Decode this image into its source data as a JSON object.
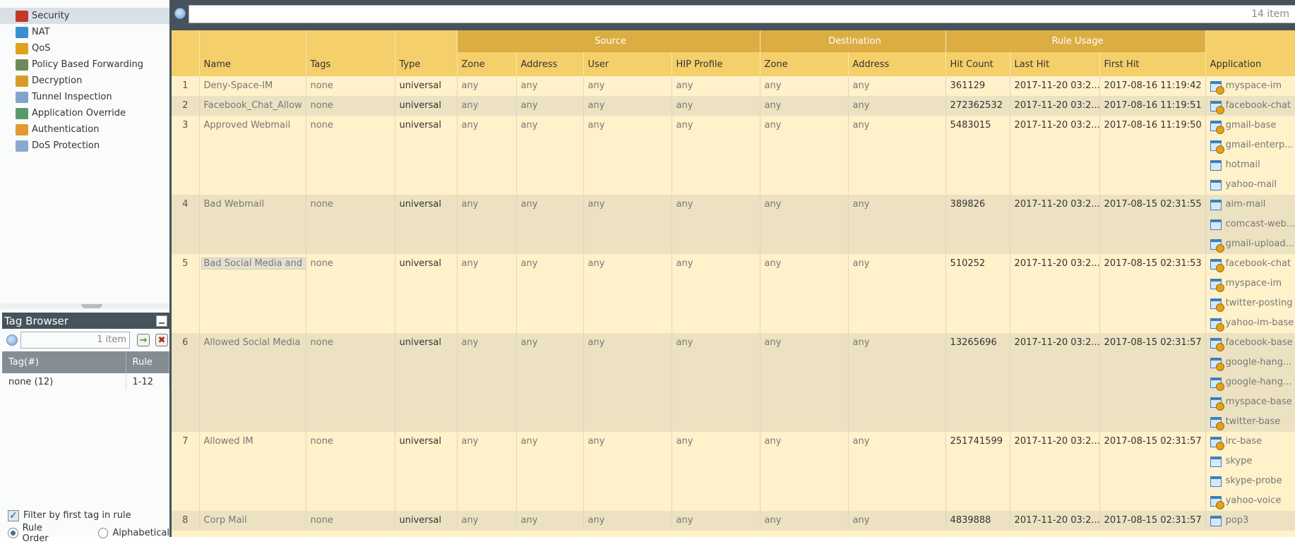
{
  "sidebar": {
    "items": [
      {
        "label": "Security",
        "icon": "firewall-icon",
        "color": "#c0392b",
        "selected": true
      },
      {
        "label": "NAT",
        "icon": "nat-icon",
        "color": "#3b8fd1"
      },
      {
        "label": "QoS",
        "icon": "qos-icon",
        "color": "#e0a020"
      },
      {
        "label": "Policy Based Forwarding",
        "icon": "forwarding-icon",
        "color": "#6d8a5a"
      },
      {
        "label": "Decryption",
        "icon": "padlock-icon",
        "color": "#d89a2a"
      },
      {
        "label": "Tunnel Inspection",
        "icon": "tunnel-inspection-icon",
        "color": "#7fa6c9"
      },
      {
        "label": "Application Override",
        "icon": "app-override-icon",
        "color": "#5a9a6a"
      },
      {
        "label": "Authentication",
        "icon": "authentication-icon",
        "color": "#e09a30"
      },
      {
        "label": "DoS Protection",
        "icon": "dos-shield-icon",
        "color": "#8aa8d0"
      }
    ]
  },
  "tag_browser": {
    "title": "Tag Browser",
    "search_count": "1 item",
    "columns": [
      "Tag(#)",
      "Rule"
    ],
    "rows": [
      {
        "tag": "none (12)",
        "rule": "1-12"
      }
    ],
    "filter_label": "Filter by first tag in rule",
    "filter_checked": true,
    "sort_options": [
      "Rule Order",
      "Alphabetical"
    ],
    "sort_selected": "Rule Order"
  },
  "main": {
    "search_count": "14 item",
    "group_headers": {
      "source": "Source",
      "destination": "Destination",
      "rule_usage": "Rule Usage"
    },
    "columns": [
      "",
      "Name",
      "Tags",
      "Type",
      "Zone",
      "Address",
      "User",
      "HIP Profile",
      "Zone",
      "Address",
      "Hit Count",
      "Last Hit",
      "First Hit",
      "Application"
    ],
    "rules": [
      {
        "num": "1",
        "name": "Deny-Space-IM",
        "tags": "none",
        "type": "universal",
        "src_zone": "any",
        "src_addr": "any",
        "user": "any",
        "hip": "any",
        "dst_zone": "any",
        "dst_addr": "any",
        "hits": "361129",
        "last": "2017-11-20 03:2...",
        "first": "2017-08-16 11:19:42",
        "apps": [
          {
            "n": "myspace-im",
            "c": true
          }
        ]
      },
      {
        "num": "2",
        "name": "Facebook_Chat_Allow",
        "tags": "none",
        "type": "universal",
        "src_zone": "any",
        "src_addr": "any",
        "user": "any",
        "hip": "any",
        "dst_zone": "any",
        "dst_addr": "any",
        "hits": "272362532",
        "last": "2017-11-20 03:2...",
        "first": "2017-08-16 11:19:51",
        "apps": [
          {
            "n": "facebook-chat",
            "c": true
          }
        ]
      },
      {
        "num": "3",
        "name": "Approved Webmail",
        "tags": "none",
        "type": "universal",
        "src_zone": "any",
        "src_addr": "any",
        "user": "any",
        "hip": "any",
        "dst_zone": "any",
        "dst_addr": "any",
        "hits": "5483015",
        "last": "2017-11-20 03:2...",
        "first": "2017-08-16 11:19:50",
        "apps": [
          {
            "n": "gmail-base",
            "c": true
          },
          {
            "n": "gmail-enterp...",
            "c": true
          },
          {
            "n": "hotmail",
            "c": false
          },
          {
            "n": "yahoo-mail",
            "c": false
          }
        ]
      },
      {
        "num": "4",
        "name": "Bad Webmail",
        "tags": "none",
        "type": "universal",
        "src_zone": "any",
        "src_addr": "any",
        "user": "any",
        "hip": "any",
        "dst_zone": "any",
        "dst_addr": "any",
        "hits": "389826",
        "last": "2017-11-20 03:2...",
        "first": "2017-08-15 02:31:55",
        "apps": [
          {
            "n": "aim-mail",
            "c": false
          },
          {
            "n": "comcast-web...",
            "c": false
          },
          {
            "n": "gmail-upload...",
            "c": true
          }
        ]
      },
      {
        "num": "5",
        "name": "Bad Social Media and IM",
        "tags": "none",
        "type": "universal",
        "src_zone": "any",
        "src_addr": "any",
        "user": "any",
        "hip": "any",
        "dst_zone": "any",
        "dst_addr": "any",
        "hits": "510252",
        "last": "2017-11-20 03:2...",
        "first": "2017-08-15 02:31:53",
        "highlight": true,
        "apps": [
          {
            "n": "facebook-chat",
            "c": true
          },
          {
            "n": "myspace-im",
            "c": true
          },
          {
            "n": "twitter-posting",
            "c": true
          },
          {
            "n": "yahoo-im-base",
            "c": true
          }
        ]
      },
      {
        "num": "6",
        "name": "Allowed Social Media",
        "tags": "none",
        "type": "universal",
        "src_zone": "any",
        "src_addr": "any",
        "user": "any",
        "hip": "any",
        "dst_zone": "any",
        "dst_addr": "any",
        "hits": "13265696",
        "last": "2017-11-20 03:2...",
        "first": "2017-08-15 02:31:57",
        "apps": [
          {
            "n": "facebook-base",
            "c": true
          },
          {
            "n": "google-hang...",
            "c": true
          },
          {
            "n": "google-hang...",
            "c": true
          },
          {
            "n": "myspace-base",
            "c": true
          },
          {
            "n": "twitter-base",
            "c": true
          }
        ]
      },
      {
        "num": "7",
        "name": "Allowed IM",
        "tags": "none",
        "type": "universal",
        "src_zone": "any",
        "src_addr": "any",
        "user": "any",
        "hip": "any",
        "dst_zone": "any",
        "dst_addr": "any",
        "hits": "251741599",
        "last": "2017-11-20 03:2...",
        "first": "2017-08-15 02:31:57",
        "apps": [
          {
            "n": "irc-base",
            "c": true
          },
          {
            "n": "skype",
            "c": false
          },
          {
            "n": "skype-probe",
            "c": false
          },
          {
            "n": "yahoo-voice",
            "c": true
          }
        ]
      },
      {
        "num": "8",
        "name": "Corp Mail",
        "tags": "none",
        "type": "universal",
        "src_zone": "any",
        "src_addr": "any",
        "user": "any",
        "hip": "any",
        "dst_zone": "any",
        "dst_addr": "any",
        "hits": "4839888",
        "last": "2017-11-20 03:2...",
        "first": "2017-08-15 02:31:57",
        "apps": [
          {
            "n": "pop3",
            "c": false
          }
        ]
      }
    ]
  }
}
